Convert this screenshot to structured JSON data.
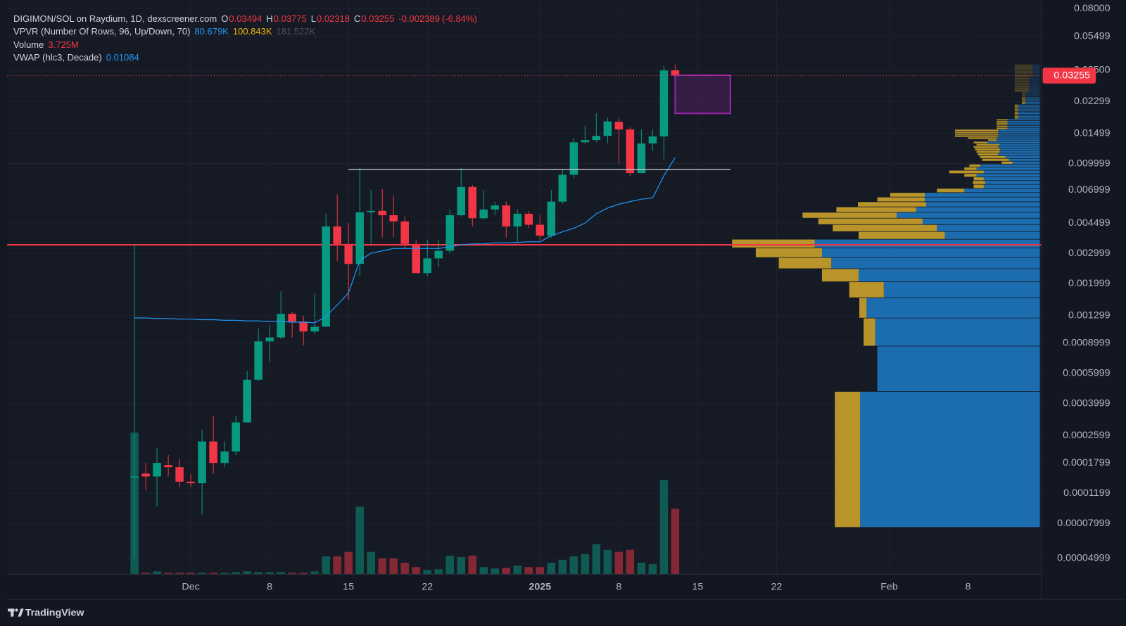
{
  "legend": {
    "symbol": "DIGIMON/SOL on Raydium, 1D, dexscreener.com",
    "ohlc_keys": [
      "O",
      "H",
      "L",
      "C"
    ],
    "change": "-0.002389",
    "change_pct": "(-6.84%)",
    "vpvr": "VPVR (Number Of Rows, 96, Up/Down, 70)",
    "vpvr_values": [
      "80.679K",
      "100.843K",
      "181.522K"
    ],
    "volume": "Volume",
    "volume_value": "3.725M",
    "vwap": "VWAP (hlc3, Decade)"
  },
  "brand": "TradingView",
  "chart_data": {
    "type": "candlestick",
    "open": [
      0.00015,
      0.000156,
      0.00015,
      0.000175,
      0.00017,
      0.00014,
      0.000137,
      0.00024,
      0.00018,
      0.00021,
      0.00031,
      0.00055,
      0.00092,
      0.00097,
      0.00133,
      0.0012,
      0.00105,
      0.00112,
      0.0043,
      0.0034,
      0.0026,
      0.0052,
      0.0053,
      0.005,
      0.0046,
      0.0034,
      0.0023,
      0.0028,
      0.0031,
      0.005,
      0.0073,
      0.0048,
      0.0054,
      0.0057,
      0.0043,
      0.0051,
      0.0044,
      0.0038,
      0.006,
      0.0086,
      0.0133,
      0.0137,
      0.0145,
      0.0175,
      0.0158,
      0.0088,
      0.0131,
      0.0144,
      0.03494
    ],
    "high": [
      0.0034,
      0.00018,
      0.00022,
      0.0002,
      0.00019,
      0.000155,
      0.00028,
      0.00034,
      0.00024,
      0.00034,
      0.00062,
      0.00109,
      0.00114,
      0.0018,
      0.00137,
      0.0013,
      0.00175,
      0.0051,
      0.0066,
      0.0045,
      0.0094,
      0.007,
      0.0071,
      0.0065,
      0.0049,
      0.0036,
      0.0036,
      0.0036,
      0.0054,
      0.0094,
      0.0075,
      0.007,
      0.006,
      0.006,
      0.0054,
      0.0053,
      0.005,
      0.007,
      0.0093,
      0.0141,
      0.0166,
      0.0196,
      0.0185,
      0.0183,
      0.0163,
      0.0158,
      0.0158,
      0.0371,
      0.03775
    ],
    "low": [
      5e-05,
      0.000125,
      0.0001,
      0.00015,
      0.00013,
      0.00013,
      9e-05,
      0.000155,
      0.00017,
      0.0002,
      0.00031,
      0.00054,
      0.0007,
      0.00095,
      0.00097,
      0.00087,
      0.00102,
      0.00112,
      0.0027,
      0.0016,
      0.0022,
      0.0034,
      0.0037,
      0.0037,
      0.0032,
      0.0023,
      0.0022,
      0.0025,
      0.003,
      0.0049,
      0.0043,
      0.0047,
      0.005,
      0.0037,
      0.0035,
      0.0042,
      0.0036,
      0.0037,
      0.0058,
      0.0082,
      0.0131,
      0.0133,
      0.0131,
      0.01,
      0.0085,
      0.0088,
      0.0119,
      0.0106,
      0.02318
    ],
    "close": [
      0.00015,
      0.00015,
      0.00018,
      0.00017,
      0.00014,
      0.000137,
      0.00024,
      0.00018,
      0.00021,
      0.00031,
      0.00055,
      0.00092,
      0.00097,
      0.00133,
      0.0012,
      0.00105,
      0.00112,
      0.0043,
      0.0034,
      0.0026,
      0.0052,
      0.0053,
      0.005,
      0.0046,
      0.0034,
      0.0023,
      0.0028,
      0.0031,
      0.005,
      0.0073,
      0.0048,
      0.0054,
      0.0057,
      0.0043,
      0.0051,
      0.0044,
      0.0038,
      0.006,
      0.0086,
      0.0133,
      0.0137,
      0.0145,
      0.0176,
      0.0158,
      0.0088,
      0.0131,
      0.0144,
      0.0349,
      0.03255
    ],
    "volume": [
      8060000,
      82000,
      164000,
      82000,
      82000,
      82000,
      82000,
      82000,
      82000,
      123000,
      164000,
      123000,
      123000,
      123000,
      82000,
      82000,
      164000,
      1020000,
      1020000,
      1270000,
      3850000,
      1270000,
      900000,
      900000,
      655000,
      410000,
      245000,
      286000,
      1060000,
      980000,
      1060000,
      410000,
      327000,
      368000,
      490000,
      410000,
      410000,
      655000,
      820000,
      1020000,
      1150000,
      1720000,
      1390000,
      1270000,
      1390000,
      655000,
      573000,
      5360000,
      3725000
    ],
    "vwap": [
      0.00126,
      0.00126,
      0.00125,
      0.00125,
      0.00124,
      0.00124,
      0.00123,
      0.00123,
      0.00122,
      0.00122,
      0.00121,
      0.00121,
      0.0012,
      0.0012,
      0.00119,
      0.00119,
      0.00118,
      0.00128,
      0.0015,
      0.00176,
      0.00272,
      0.003,
      0.0031,
      0.0032,
      0.0032,
      0.0032,
      0.0032,
      0.0032,
      0.00327,
      0.00336,
      0.0034,
      0.0034,
      0.00345,
      0.00345,
      0.00347,
      0.0035,
      0.0035,
      0.0038,
      0.004,
      0.0042,
      0.0045,
      0.0051,
      0.0055,
      0.0058,
      0.006,
      0.0062,
      0.0063,
      0.0085,
      0.01084
    ],
    "up_color": "#089981",
    "down_color": "#f23645",
    "vwap_color": "#2196f3",
    "xlim": [
      -11.3,
      80.5
    ],
    "xticks": [
      {
        "value": 5,
        "label": "Dec"
      },
      {
        "value": 12,
        "label": "8"
      },
      {
        "value": 19,
        "label": "15"
      },
      {
        "value": 26,
        "label": "22"
      },
      {
        "value": 36,
        "label": "2025"
      },
      {
        "value": 43,
        "label": "8"
      },
      {
        "value": 50,
        "label": "15"
      },
      {
        "value": 57,
        "label": "22"
      },
      {
        "value": 67,
        "label": "Feb"
      },
      {
        "value": 74,
        "label": "8"
      }
    ],
    "ylim": [
      4.04e-05,
      0.0897
    ],
    "log_scale": true,
    "yticks": [
      {
        "value": 0.08,
        "label": "0.08000"
      },
      0.05499,
      {
        "value": 0.035,
        "label": "0.03500"
      },
      0.02299,
      0.01499,
      0.009999,
      0.006999,
      0.004499,
      0.002999,
      0.001999,
      0.001299,
      0.0008999,
      0.0005999,
      0.0003999,
      0.0002599,
      0.0001799,
      0.0001199,
      7.999e-05,
      4.999e-05
    ],
    "grid": true,
    "volume_lim": [
      0,
      9800000
    ],
    "vpvr": {
      "range": [
        7.55e-05,
        0.03775
      ],
      "xlim": [
        0,
        1438
      ],
      "up_color": "#1c6db0",
      "down_color": "#b8942a",
      "up": [
        250,
        226,
        229,
        241,
        217,
        252,
        290,
        303,
        313,
        132,
        143,
        163,
        199,
        172,
        158,
        160,
        160,
        105,
        78,
        76,
        78,
        88,
        78,
        88,
        83,
        38,
        43,
        48,
        58,
        56,
        55,
        58,
        56,
        73,
        60,
        60,
        58,
        58,
        58,
        58,
        45,
        45,
        45,
        45,
        45,
        45,
        30,
        30,
        30,
        30,
        30,
        30,
        30,
        30,
        30,
        30,
        20,
        20,
        20,
        20,
        20,
        20,
        20,
        20,
        20,
        20,
        15,
        15,
        15,
        15,
        15,
        15,
        15,
        15,
        15,
        15,
        15,
        15,
        15,
        15,
        15,
        10,
        10,
        10,
        10,
        10,
        10,
        10,
        10,
        10,
        10,
        10,
        10,
        10,
        10,
        10
      ],
      "down": [
        35,
        0,
        16,
        10,
        48,
        51,
        73,
        92,
        115,
        120,
        145,
        145,
        131,
        111,
        95,
        66,
        48,
        38,
        14,
        17,
        14,
        17,
        48,
        17,
        15,
        15,
        37,
        35,
        28,
        32,
        35,
        34,
        32,
        19,
        12,
        40,
        60,
        60,
        60,
        60,
        15,
        15,
        15,
        15,
        15,
        15,
        5,
        5,
        5,
        5,
        5,
        5,
        5,
        5,
        5,
        5,
        5,
        5,
        5,
        5,
        5,
        5,
        5,
        5,
        5,
        5,
        20,
        20,
        20,
        20,
        20,
        20,
        20,
        20,
        20,
        20,
        20,
        20,
        20,
        20,
        20,
        25,
        25,
        25,
        25,
        25,
        25,
        25,
        25,
        25,
        25,
        25,
        25,
        25,
        25,
        25
      ]
    },
    "annotations": {
      "hline": {
        "value": 0.00336,
        "color": "#f23645"
      },
      "segment": {
        "value": 0.00925,
        "x": [
          19,
          52.9
        ],
        "color": "#d1d4dc"
      },
      "box": {
        "y": [
          0.0196,
          0.0327
        ],
        "x": [
          48,
          52.9
        ],
        "color": "#9c27b0"
      }
    }
  }
}
